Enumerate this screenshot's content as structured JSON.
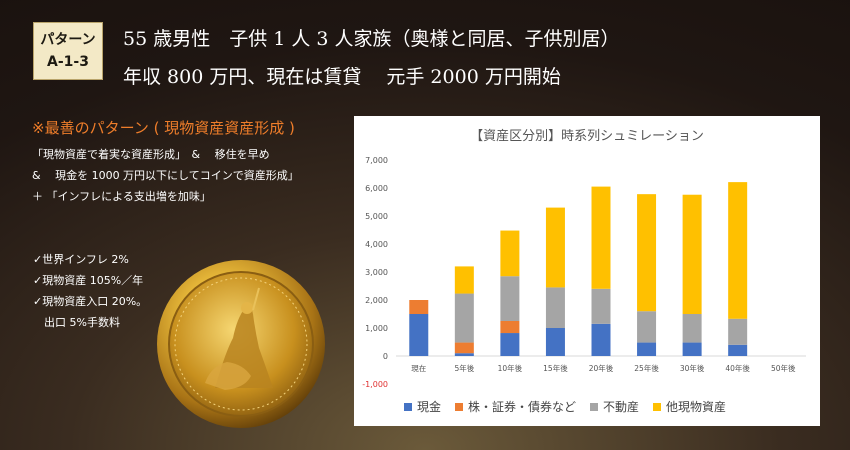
{
  "badge": {
    "line1": "パターン",
    "line2": "A-1-3"
  },
  "headline": {
    "line1": "55 歳男性　子供 1 人 3 人家族（奥様と同居、子供別居）",
    "line2": "年収 800 万円、現在は賃貸　 元手 2000 万円開始"
  },
  "pattern": {
    "title": "※最善のパターン ( 現物資産資産形成 )",
    "lines": [
      "「現物資産で着実な資産形成」　&　 移住を早め",
      "&　 現金を 1000 万円以下にしてコインで資産形成」",
      "＋ 「インフレによる支出増を加味」"
    ]
  },
  "assumptions": [
    "✓世界インフレ 2%",
    "✓現物資産 105%／年",
    "✓現物資産入口 20%。",
    "　出口 5%手数料"
  ],
  "coin_image": "gold-coin-britannia",
  "colors": {
    "cash": "#4472c4",
    "stocks": "#ed7d31",
    "realestate": "#a5a5a5",
    "physical": "#ffc000"
  },
  "chart_data": {
    "type": "bar",
    "stacked": true,
    "title": "【資産区分別】時系列シュミレーション",
    "categories": [
      "現在",
      "5年後",
      "10年後",
      "15年後",
      "20年後",
      "25年後",
      "30年後",
      "40年後",
      "50年後"
    ],
    "series": [
      {
        "name": "現金",
        "color": "#4472c4",
        "values": [
          1500,
          100,
          820,
          1000,
          1150,
          480,
          480,
          400,
          0
        ]
      },
      {
        "name": "株・証券・債券など",
        "color": "#ed7d31",
        "values": [
          500,
          380,
          430,
          0,
          0,
          0,
          0,
          0,
          0
        ]
      },
      {
        "name": "不動産",
        "color": "#a5a5a5",
        "values": [
          0,
          1750,
          1600,
          1450,
          1250,
          1120,
          1020,
          930,
          0
        ]
      },
      {
        "name": "他現物資産",
        "color": "#ffc000",
        "values": [
          0,
          970,
          1630,
          2850,
          3650,
          4180,
          4260,
          4880,
          0
        ]
      }
    ],
    "yticks": [
      "7,000",
      "6,000",
      "5,000",
      "4,000",
      "3,000",
      "2,000",
      "1,000",
      "0",
      "-1,000"
    ],
    "ylim": [
      -1000,
      7000
    ],
    "grid": false,
    "legend": "bottom"
  }
}
